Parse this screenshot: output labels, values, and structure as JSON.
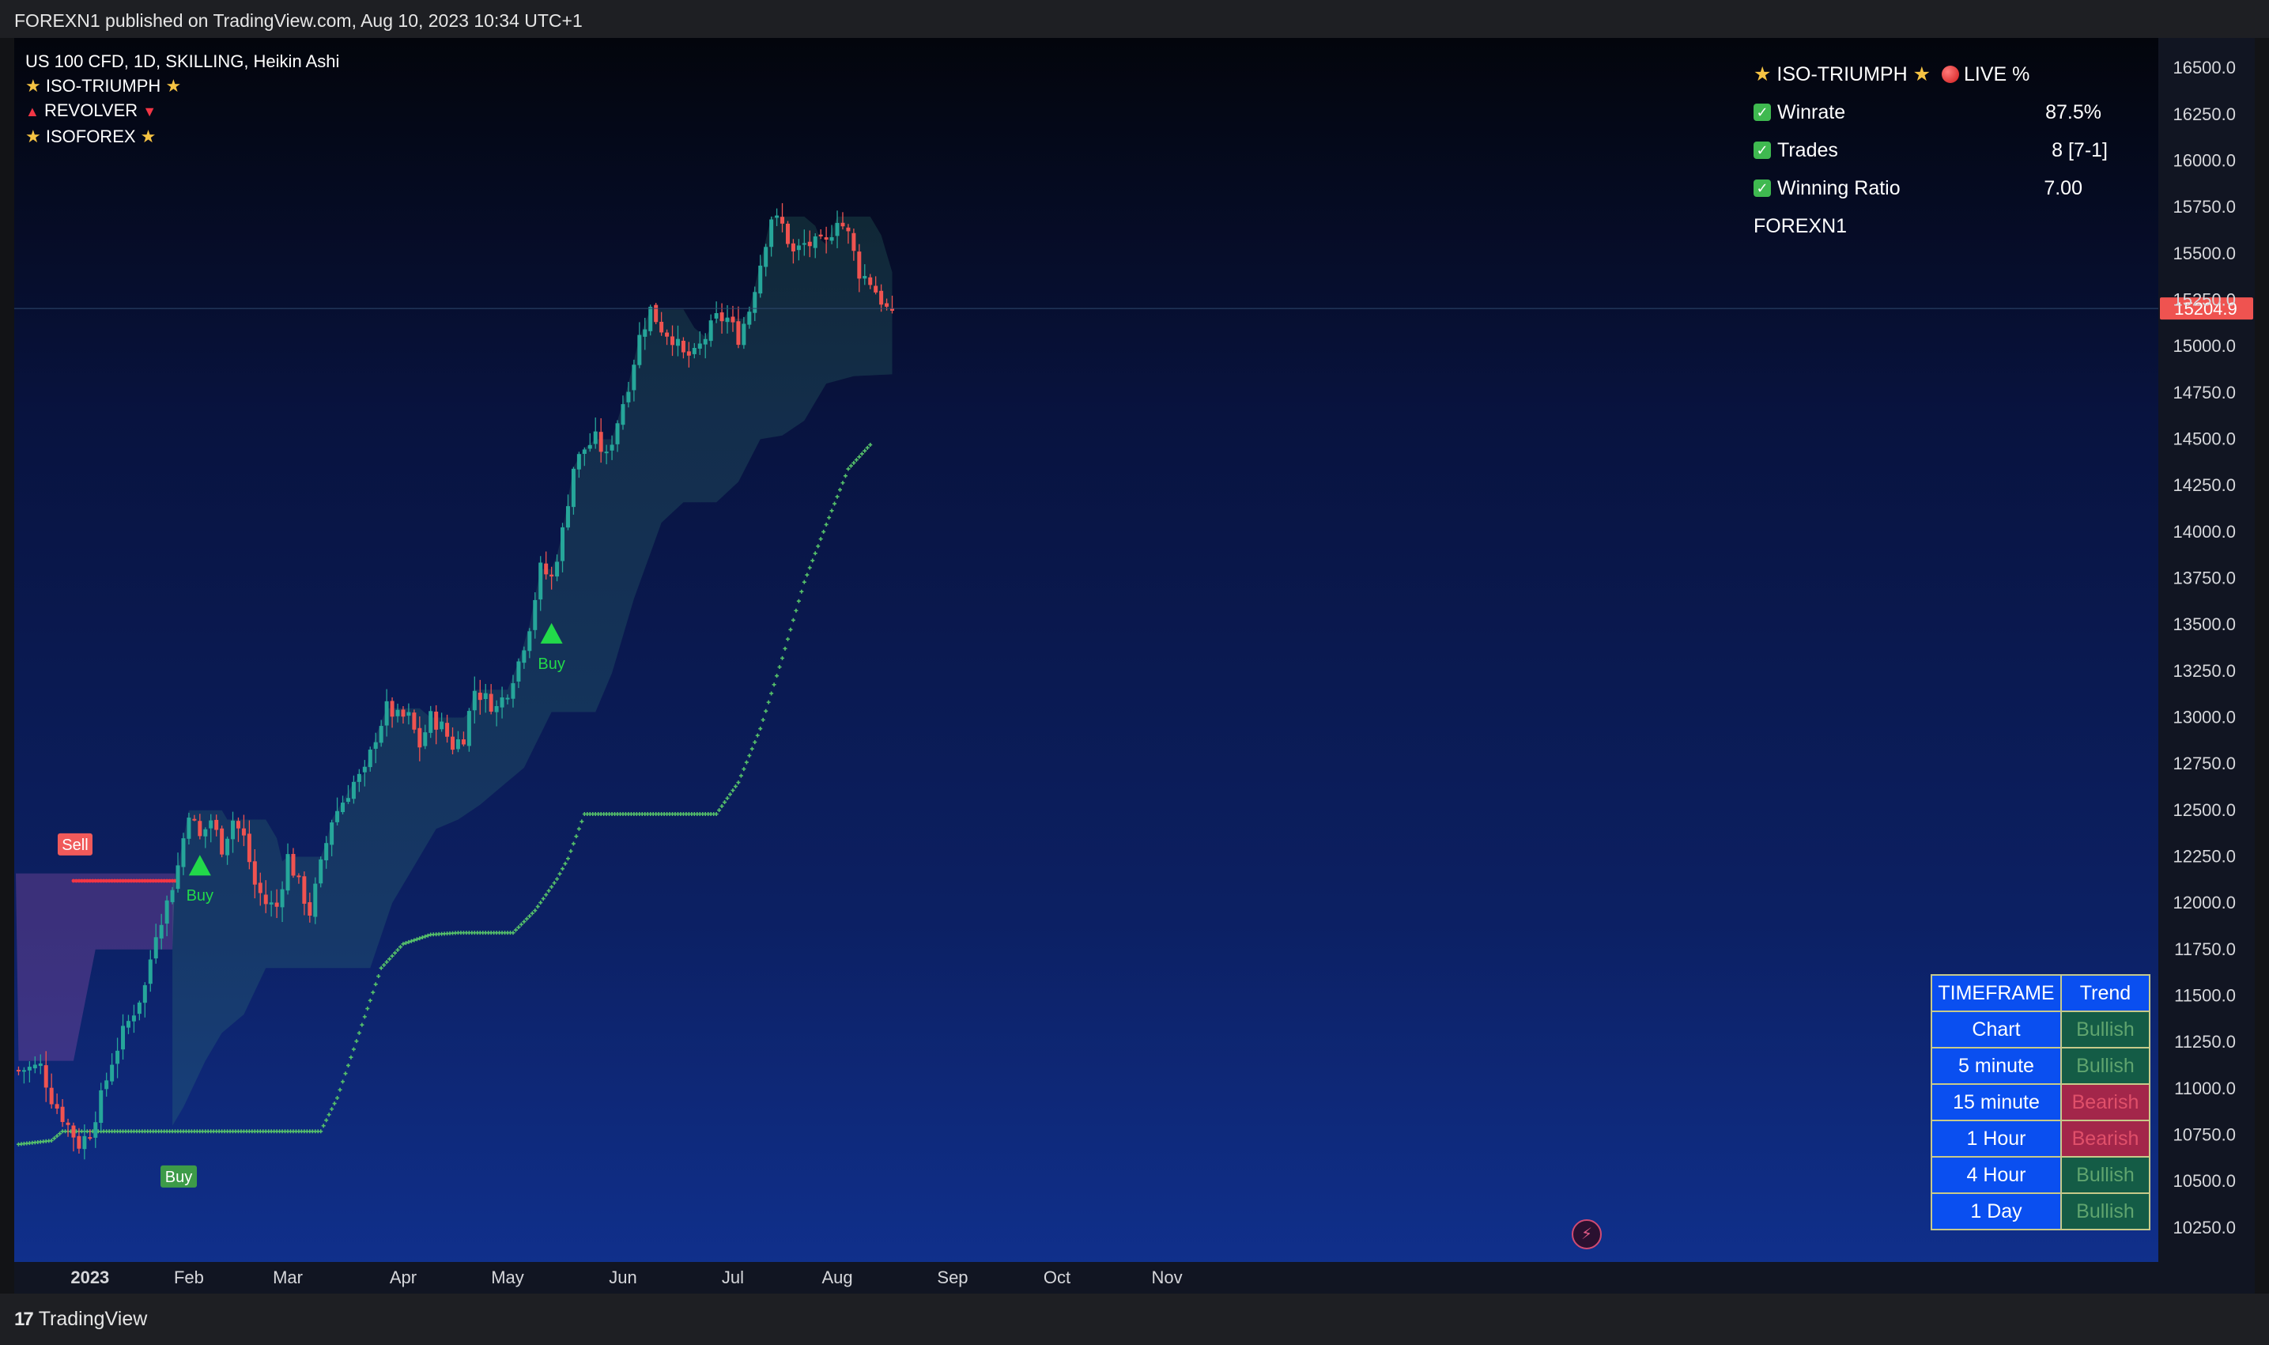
{
  "header": {
    "published": "FOREXN1 published on TradingView.com, Aug 10, 2023 10:34 UTC+1"
  },
  "footer": {
    "brand": "TradingView"
  },
  "legend": {
    "symbol_line": "US 100 CFD, 1D, SKILLING, Heikin Ashi",
    "indicators": [
      {
        "name": "ISO-TRIUMPH",
        "icon": "star-icon"
      },
      {
        "name": "REVOLVER",
        "icon": "triangle-icon"
      },
      {
        "name": "ISOFOREX",
        "icon": "star-icon"
      }
    ]
  },
  "stats": {
    "title": "ISO-TRIUMPH",
    "live": "LIVE %",
    "rows": [
      {
        "label": "Winrate",
        "value": "87.5%"
      },
      {
        "label": "Trades",
        "value": "8 [7-1]"
      },
      {
        "label": "Winning Ratio",
        "value": "7.00"
      }
    ],
    "author": "FOREXN1"
  },
  "trend_table": {
    "headers": [
      "TIMEFRAME",
      "Trend"
    ],
    "rows": [
      {
        "tf": "Chart",
        "trend": "Bullish"
      },
      {
        "tf": "5 minute",
        "trend": "Bullish"
      },
      {
        "tf": "15 minute",
        "trend": "Bearish"
      },
      {
        "tf": "1 Hour",
        "trend": "Bearish"
      },
      {
        "tf": "4 Hour",
        "trend": "Bullish"
      },
      {
        "tf": "1 Day",
        "trend": "Bullish"
      }
    ]
  },
  "colors": {
    "up": "#26a69a",
    "down": "#ef5350",
    "buy": "#22d94a",
    "sell": "#f23645",
    "stop": "#56c26a"
  },
  "chart_data": {
    "type": "candlestick",
    "style": "Heikin Ashi",
    "x_ticks": [
      "2023",
      "Feb",
      "Mar",
      "Apr",
      "May",
      "Jun",
      "Jul",
      "Aug",
      "Sep",
      "Oct",
      "Nov"
    ],
    "y_ticks": [
      16500,
      16250,
      16000,
      15750,
      15500,
      15250,
      15000,
      14750,
      14500,
      14250,
      14000,
      13750,
      13500,
      13250,
      13000,
      12750,
      12500,
      12250,
      12000,
      11750,
      11500,
      11250,
      11000,
      10750,
      10500,
      10250
    ],
    "ylim": [
      10100,
      16620
    ],
    "last_price": "15204.9",
    "close_path": [
      [
        0,
        11100
      ],
      [
        4,
        11120
      ],
      [
        6,
        10950
      ],
      [
        9,
        10800
      ],
      [
        11,
        10700
      ],
      [
        13,
        10770
      ],
      [
        15,
        10950
      ],
      [
        17,
        11150
      ],
      [
        19,
        11300
      ],
      [
        21,
        11420
      ],
      [
        23,
        11550
      ],
      [
        25,
        11850
      ],
      [
        27,
        12000
      ],
      [
        29,
        12200
      ],
      [
        31,
        12500
      ],
      [
        33,
        12350
      ],
      [
        35,
        12450
      ],
      [
        37,
        12300
      ],
      [
        39,
        12450
      ],
      [
        41,
        12350
      ],
      [
        43,
        12100
      ],
      [
        45,
        12000
      ],
      [
        47,
        11980
      ],
      [
        49,
        12250
      ],
      [
        51,
        12100
      ],
      [
        53,
        11950
      ],
      [
        55,
        12200
      ],
      [
        57,
        12450
      ],
      [
        59,
        12550
      ],
      [
        61,
        12650
      ],
      [
        63,
        12700
      ],
      [
        65,
        12900
      ],
      [
        67,
        13050
      ],
      [
        69,
        13000
      ],
      [
        71,
        13000
      ],
      [
        73,
        12850
      ],
      [
        75,
        13000
      ],
      [
        77,
        12950
      ],
      [
        79,
        12850
      ],
      [
        81,
        12900
      ],
      [
        83,
        13150
      ],
      [
        85,
        13100
      ],
      [
        87,
        13050
      ],
      [
        89,
        13150
      ],
      [
        91,
        13300
      ],
      [
        93,
        13500
      ],
      [
        95,
        13800
      ],
      [
        97,
        13750
      ],
      [
        99,
        14000
      ],
      [
        101,
        14350
      ],
      [
        103,
        14450
      ],
      [
        105,
        14500
      ],
      [
        107,
        14400
      ],
      [
        109,
        14600
      ],
      [
        111,
        14800
      ],
      [
        113,
        15050
      ],
      [
        115,
        15200
      ],
      [
        117,
        15100
      ],
      [
        119,
        15050
      ],
      [
        121,
        14950
      ],
      [
        123,
        14950
      ],
      [
        125,
        15050
      ],
      [
        127,
        15150
      ],
      [
        129,
        15150
      ],
      [
        131,
        15050
      ],
      [
        133,
        15200
      ],
      [
        135,
        15450
      ],
      [
        137,
        15700
      ],
      [
        139,
        15650
      ],
      [
        141,
        15500
      ],
      [
        143,
        15550
      ],
      [
        145,
        15550
      ],
      [
        147,
        15550
      ],
      [
        149,
        15700
      ],
      [
        151,
        15600
      ],
      [
        153,
        15400
      ],
      [
        155,
        15350
      ],
      [
        157,
        15250
      ],
      [
        159,
        15150
      ]
    ],
    "buy_signals": [
      {
        "label": "Buy",
        "bar": 33,
        "price": 12200
      },
      {
        "label": "Buy",
        "bar": 97,
        "price": 13450
      },
      {
        "label": "Buy",
        "bar": 29,
        "price": 10680
      }
    ],
    "sell_signals": [
      {
        "label": "Sell",
        "bar": 10,
        "price": 12180
      }
    ],
    "sell_stop": [
      [
        10,
        12120
      ],
      [
        29,
        12120
      ]
    ],
    "long_stop": [
      [
        0,
        10700
      ],
      [
        6,
        10720
      ],
      [
        8,
        10770
      ],
      [
        28,
        10770
      ],
      [
        30,
        10770
      ],
      [
        55,
        10770
      ],
      [
        58,
        10950
      ],
      [
        62,
        11300
      ],
      [
        66,
        11650
      ],
      [
        70,
        11780
      ],
      [
        75,
        11830
      ],
      [
        80,
        11840
      ],
      [
        90,
        11840
      ],
      [
        94,
        11960
      ],
      [
        98,
        12130
      ],
      [
        100,
        12240
      ],
      [
        103,
        12480
      ],
      [
        106,
        12480
      ],
      [
        127,
        12480
      ],
      [
        131,
        12650
      ],
      [
        135,
        12940
      ],
      [
        139,
        13320
      ],
      [
        143,
        13730
      ],
      [
        147,
        14040
      ],
      [
        151,
        14340
      ],
      [
        155,
        14470
      ]
    ],
    "bear_cloud": {
      "from_bar": 0,
      "to_bar": 28,
      "top": 12160,
      "bottom": [
        [
          0,
          11150
        ],
        [
          10,
          11150
        ],
        [
          14,
          11750
        ],
        [
          20,
          11750
        ],
        [
          26,
          11750
        ],
        [
          28,
          11750
        ]
      ]
    },
    "bull_cloud": {
      "from_bar": 28,
      "to_bar": 159,
      "lower": [
        [
          28,
          10800
        ],
        [
          30,
          10900
        ],
        [
          34,
          11150
        ],
        [
          37,
          11300
        ],
        [
          41,
          11400
        ],
        [
          45,
          11650
        ],
        [
          54,
          11650
        ],
        [
          58,
          11650
        ],
        [
          64,
          11650
        ],
        [
          68,
          12000
        ],
        [
          72,
          12200
        ],
        [
          76,
          12400
        ],
        [
          80,
          12450
        ],
        [
          84,
          12530
        ],
        [
          92,
          12730
        ],
        [
          97,
          13030
        ],
        [
          105,
          13030
        ],
        [
          108,
          13240
        ],
        [
          112,
          13640
        ],
        [
          117,
          14050
        ],
        [
          121,
          14160
        ],
        [
          127,
          14160
        ],
        [
          131,
          14270
        ],
        [
          135,
          14500
        ],
        [
          139,
          14520
        ],
        [
          143,
          14600
        ],
        [
          147,
          14800
        ],
        [
          152,
          14840
        ],
        [
          159,
          14850
        ]
      ]
    }
  }
}
